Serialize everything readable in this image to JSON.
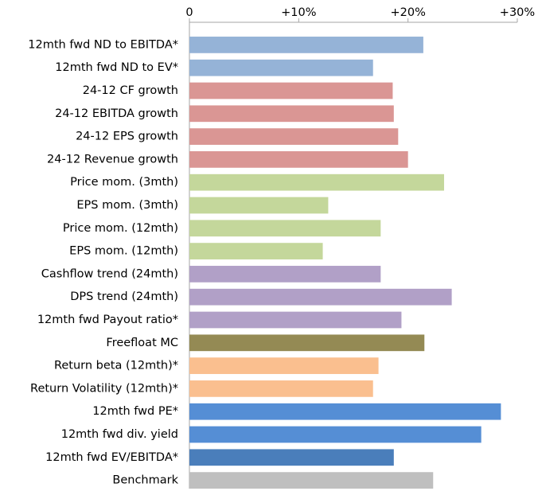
{
  "chart_data": {
    "type": "bar",
    "orientation": "horizontal",
    "categories": [
      "12mth fwd ND to EBITDA*",
      "12mth fwd ND to EV*",
      "24-12 CF growth",
      "24-12 EBITDA growth",
      "24-12 EPS growth",
      "24-12 Revenue growth",
      "Price mom. (3mth)",
      "EPS mom. (3mth)",
      "Price mom. (12mth)",
      "EPS mom. (12mth)",
      "Cashflow trend (24mth)",
      "DPS trend (24mth)",
      "12mth fwd Payout ratio*",
      "Freefloat MC",
      "Return beta (12mth)*",
      "Return Volatility (12mth)*",
      "12mth fwd PE*",
      "12mth fwd div. yield",
      "12mth fwd EV/EBITDA*",
      "Benchmark"
    ],
    "values": [
      21.4,
      16.8,
      18.6,
      18.7,
      19.1,
      20.0,
      23.3,
      12.7,
      17.5,
      12.2,
      17.5,
      24.0,
      19.4,
      21.5,
      17.3,
      16.8,
      28.5,
      26.7,
      18.7,
      22.3
    ],
    "colors": [
      "#95b3d7",
      "#95b3d7",
      "#da9694",
      "#da9694",
      "#da9694",
      "#da9694",
      "#c4d79b",
      "#c4d79b",
      "#c4d79b",
      "#c4d79b",
      "#b1a0c7",
      "#b1a0c7",
      "#b1a0c7",
      "#948a54",
      "#fabf8f",
      "#fabf8f",
      "#558ed5",
      "#558ed5",
      "#4a7ebb",
      "#bfbfbf"
    ],
    "xlim": [
      0,
      30
    ],
    "xticks": [
      0,
      {
        "value": 10,
        "label": "+10%"
      },
      {
        "value": 20,
        "label": "+20%"
      },
      {
        "value": 30,
        "label": "+30%"
      }
    ],
    "grid": false
  }
}
